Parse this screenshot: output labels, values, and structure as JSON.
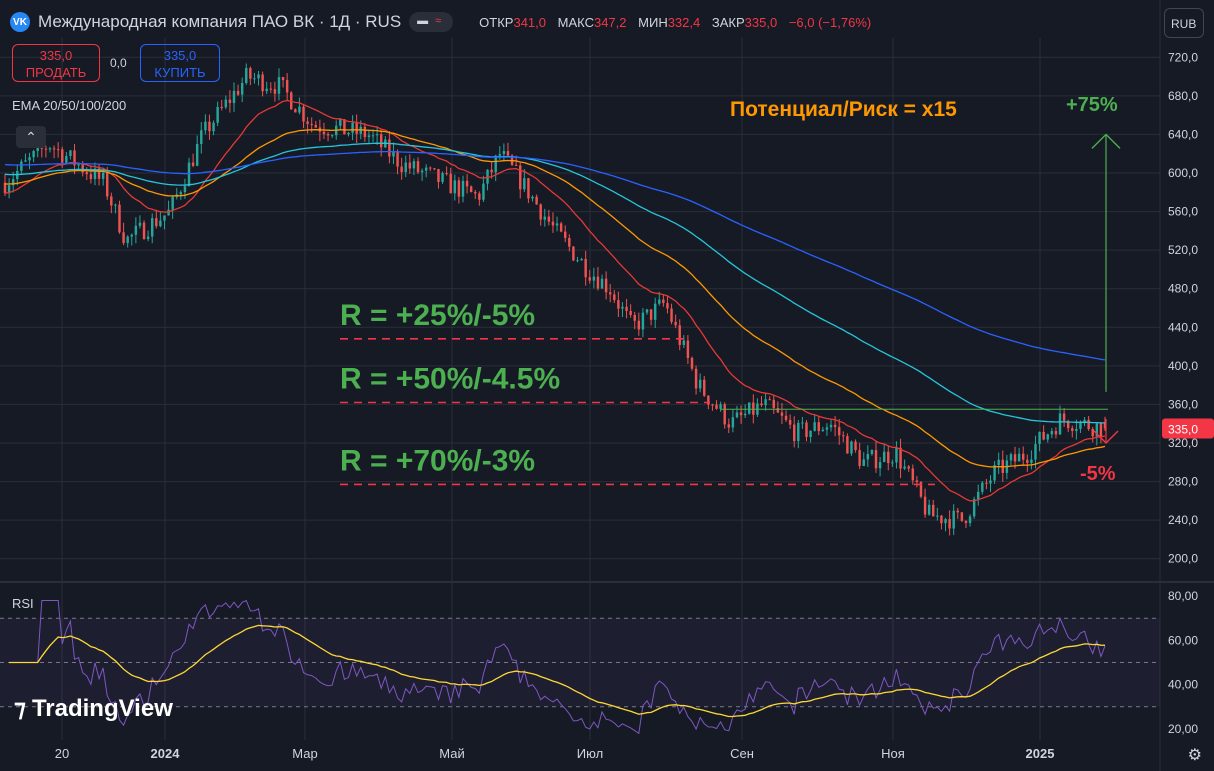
{
  "header": {
    "logo_text": "VK",
    "title": "Международная компания ПАО ВК · 1Д · RUS",
    "ohlc": [
      {
        "label": "ОТКР",
        "value": "341,0"
      },
      {
        "label": "МАКС",
        "value": "347,2"
      },
      {
        "label": "МИН",
        "value": "332,4"
      },
      {
        "label": "ЗАКР",
        "value": "335,0"
      }
    ],
    "change": "−6,0 (−1,76%)",
    "currency": "RUB"
  },
  "trade": {
    "sell_price": "335,0",
    "sell_label": "ПРОДАТЬ",
    "spread": "0,0",
    "buy_price": "335,0",
    "buy_label": "КУПИТЬ"
  },
  "indicators": {
    "ema_label": "EMA 20/50/100/200",
    "rsi_label": "RSI"
  },
  "brand": "TradingView",
  "colors": {
    "bg": "#161a25",
    "up": "#26a69a",
    "down": "#ef5350",
    "grid": "#2a2e39",
    "ema20": "#e53935",
    "ema50": "#ff9800",
    "ema100": "#26c6da",
    "ema200": "#2962ff",
    "rsi": "#7e57c2",
    "rsi_ma": "#fdd835",
    "green_text": "#4caf50",
    "orange_text": "#ff9800",
    "red_text": "#f23645"
  },
  "chart_data": {
    "type": "candlestick",
    "x_ticks": [
      "20",
      "2024",
      "Мар",
      "Май",
      "Июл",
      "Сен",
      "Ноя",
      "2025"
    ],
    "y_ticks": [
      "720,0",
      "680,0",
      "640,0",
      "600,0",
      "560,0",
      "520,0",
      "480,0",
      "440,0",
      "400,0",
      "360,0",
      "320,0",
      "280,0",
      "240,0",
      "200,0"
    ],
    "rsi_ticks": [
      "80,00",
      "60,00",
      "40,00",
      "20,00"
    ],
    "price_range": [
      180,
      740
    ],
    "rsi_range": [
      15,
      85
    ],
    "rsi_levels": [
      70,
      50,
      30
    ],
    "last_price": "335,0",
    "anchors": [
      {
        "t": 0,
        "p": 590
      },
      {
        "t": 0.04,
        "p": 630
      },
      {
        "t": 0.09,
        "p": 590
      },
      {
        "t": 0.11,
        "p": 530
      },
      {
        "t": 0.15,
        "p": 560
      },
      {
        "t": 0.18,
        "p": 640
      },
      {
        "t": 0.22,
        "p": 700
      },
      {
        "t": 0.25,
        "p": 690
      },
      {
        "t": 0.28,
        "p": 650
      },
      {
        "t": 0.33,
        "p": 640
      },
      {
        "t": 0.36,
        "p": 610
      },
      {
        "t": 0.4,
        "p": 590
      },
      {
        "t": 0.43,
        "p": 575
      },
      {
        "t": 0.45,
        "p": 620
      },
      {
        "t": 0.47,
        "p": 590
      },
      {
        "t": 0.5,
        "p": 540
      },
      {
        "t": 0.53,
        "p": 500
      },
      {
        "t": 0.55,
        "p": 480
      },
      {
        "t": 0.57,
        "p": 440
      },
      {
        "t": 0.6,
        "p": 465
      },
      {
        "t": 0.63,
        "p": 380
      },
      {
        "t": 0.66,
        "p": 340
      },
      {
        "t": 0.69,
        "p": 360
      },
      {
        "t": 0.72,
        "p": 330
      },
      {
        "t": 0.75,
        "p": 340
      },
      {
        "t": 0.78,
        "p": 300
      },
      {
        "t": 0.81,
        "p": 310
      },
      {
        "t": 0.84,
        "p": 245
      },
      {
        "t": 0.87,
        "p": 240
      },
      {
        "t": 0.9,
        "p": 290
      },
      {
        "t": 0.93,
        "p": 310
      },
      {
        "t": 0.96,
        "p": 345
      },
      {
        "t": 1.0,
        "p": 335
      }
    ],
    "ema": [
      {
        "name": "EMA 20",
        "period": 20
      },
      {
        "name": "EMA 50",
        "period": 50
      },
      {
        "name": "EMA 100",
        "period": 100
      },
      {
        "name": "EMA 200",
        "period": 200
      }
    ],
    "annotations": [
      {
        "text": "Потенциал/Риск = x15",
        "color": "orange"
      },
      {
        "text": "+75%",
        "color": "green"
      },
      {
        "text": "-5%",
        "color": "red"
      },
      {
        "text": "R = +25%/-5%",
        "level": 428,
        "color": "green"
      },
      {
        "text": "R = +50%/-4.5%",
        "level": 362,
        "color": "green"
      },
      {
        "text": "R = +70%/-3%",
        "level": 277,
        "color": "green"
      }
    ],
    "resistance_level": 355,
    "target_price": 640,
    "stop_price": 320
  }
}
